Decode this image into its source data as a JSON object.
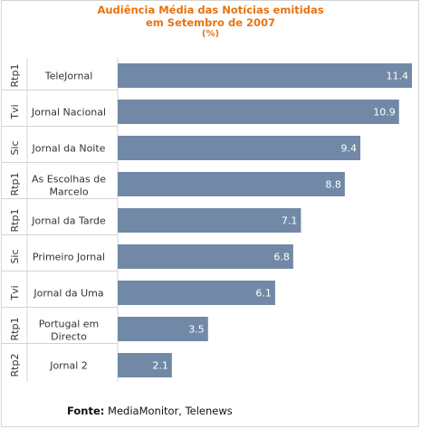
{
  "chart_data": {
    "type": "bar",
    "orientation": "horizontal",
    "title": [
      "Audiência Média das Notícias emitidas",
      "em Setembro de 2007",
      "(%)"
    ],
    "categories": [
      {
        "channel": "Rtp1",
        "program": [
          "TeleJornal"
        ],
        "value": 11.4,
        "value_label": "11.4"
      },
      {
        "channel": "Tvi",
        "program": [
          "Jornal Nacional"
        ],
        "value": 10.9,
        "value_label": "10.9"
      },
      {
        "channel": "Sic",
        "program": [
          "Jornal da Noite"
        ],
        "value": 9.4,
        "value_label": "9.4"
      },
      {
        "channel": "Rtp1",
        "program": [
          "As Escolhas de",
          "Marcelo"
        ],
        "value": 8.8,
        "value_label": "8.8"
      },
      {
        "channel": "Rtp1",
        "program": [
          "Jornal da Tarde"
        ],
        "value": 7.1,
        "value_label": "7.1"
      },
      {
        "channel": "Sic",
        "program": [
          "Primeiro Jornal"
        ],
        "value": 6.8,
        "value_label": "6.8"
      },
      {
        "channel": "Tvi",
        "program": [
          "Jornal da Uma"
        ],
        "value": 6.1,
        "value_label": "6.1"
      },
      {
        "channel": "Rtp1",
        "program": [
          "Portugal em",
          "Directo"
        ],
        "value": 3.5,
        "value_label": "3.5"
      },
      {
        "channel": "Rtp2",
        "program": [
          "Jornal 2"
        ],
        "value": 2.1,
        "value_label": "2.1"
      }
    ],
    "xlim": [
      0,
      11.4
    ],
    "bar_color": "#7189a6",
    "grid": false,
    "legend": "none"
  },
  "source": {
    "label": "Fonte:",
    "text": " MediaMonitor, Telenews"
  },
  "colors": {
    "title": "#e8730f",
    "bar": "#7189a6",
    "separator": "#d4d4d4"
  }
}
